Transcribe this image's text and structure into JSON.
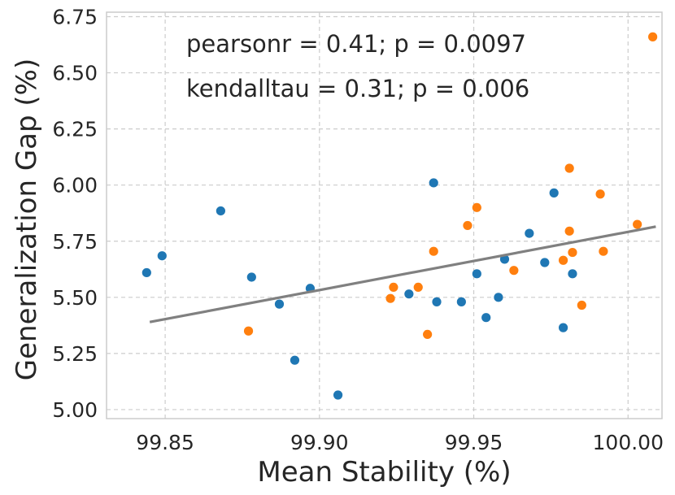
{
  "chart_data": {
    "type": "scatter",
    "title": "",
    "xlabel": "Mean Stability (%)",
    "ylabel": "Generalization Gap (%)",
    "xlim": [
      99.831,
      100.011
    ],
    "ylim": [
      4.96,
      6.77
    ],
    "xticks": [
      99.85,
      99.9,
      99.95,
      100.0
    ],
    "xtick_labels": [
      "99.85",
      "99.90",
      "99.95",
      "100.00"
    ],
    "yticks": [
      5.0,
      5.25,
      5.5,
      5.75,
      6.0,
      6.25,
      6.5,
      6.75
    ],
    "ytick_labels": [
      "5.00",
      "5.25",
      "5.50",
      "5.75",
      "6.00",
      "6.25",
      "6.50",
      "6.75"
    ],
    "grid": true,
    "annotations": [
      "pearsonr = 0.41; p = 0.0097",
      "kendalltau = 0.31; p = 0.006"
    ],
    "regression_line": {
      "color": "#808080",
      "x": [
        99.845,
        100.009
      ],
      "y": [
        5.39,
        5.815
      ]
    },
    "series": [
      {
        "name": "blue",
        "color": "#1f77b4",
        "x": [
          99.844,
          99.849,
          99.868,
          99.878,
          99.887,
          99.892,
          99.897,
          99.906,
          99.929,
          99.937,
          99.938,
          99.946,
          99.951,
          99.954,
          99.958,
          99.96,
          99.968,
          99.973,
          99.976,
          99.979,
          99.982
        ],
        "y": [
          5.61,
          5.685,
          5.885,
          5.59,
          5.47,
          5.22,
          5.54,
          5.065,
          5.515,
          6.01,
          5.48,
          5.48,
          5.605,
          5.41,
          5.5,
          5.67,
          5.785,
          5.655,
          5.965,
          5.365,
          5.605
        ]
      },
      {
        "name": "orange",
        "color": "#ff7f0e",
        "x": [
          99.877,
          99.923,
          99.924,
          99.932,
          99.935,
          99.937,
          99.948,
          99.951,
          99.963,
          99.979,
          99.981,
          99.981,
          99.982,
          99.985,
          99.991,
          99.992,
          100.003,
          100.008
        ],
        "y": [
          5.35,
          5.495,
          5.545,
          5.545,
          5.335,
          5.705,
          5.82,
          5.9,
          5.62,
          5.665,
          6.075,
          5.795,
          5.7,
          5.465,
          5.96,
          5.705,
          5.825,
          6.66
        ]
      }
    ]
  }
}
